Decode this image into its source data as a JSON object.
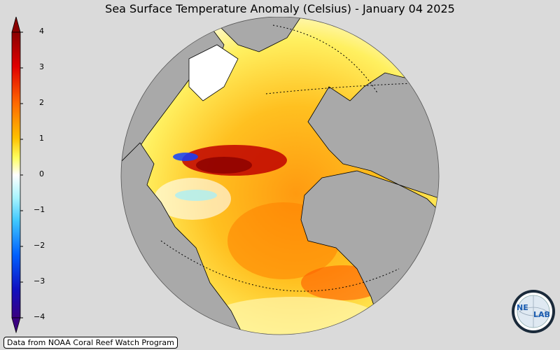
{
  "title": "Sea Surface Temperature Anomaly (Celsius) - January 04 2025",
  "colorbar": {
    "ticks": [
      "4",
      "3",
      "2",
      "1",
      "0",
      "−1",
      "−2",
      "−3",
      "−4"
    ],
    "range": [
      -4,
      4
    ],
    "extend": "both",
    "colors": [
      "#3a0080",
      "#0020ff",
      "#00a0ff",
      "#a0f0ff",
      "#ffffff",
      "#ffff40",
      "#ffb000",
      "#ff4000",
      "#8a0000"
    ]
  },
  "map": {
    "projection": "orthographic",
    "land_color": "#a9a9a9",
    "ocean_anomaly_colors": {
      "warm": "#ffb000",
      "hot": "#b00000",
      "cool": "#a0f0ff",
      "cold": "#1040ff"
    }
  },
  "credit": "Data from NOAA Coral Reef Watch Program",
  "logo": {
    "text_left": "NE",
    "text_right": "LAB",
    "icon": "nexlab-globe-logo"
  }
}
